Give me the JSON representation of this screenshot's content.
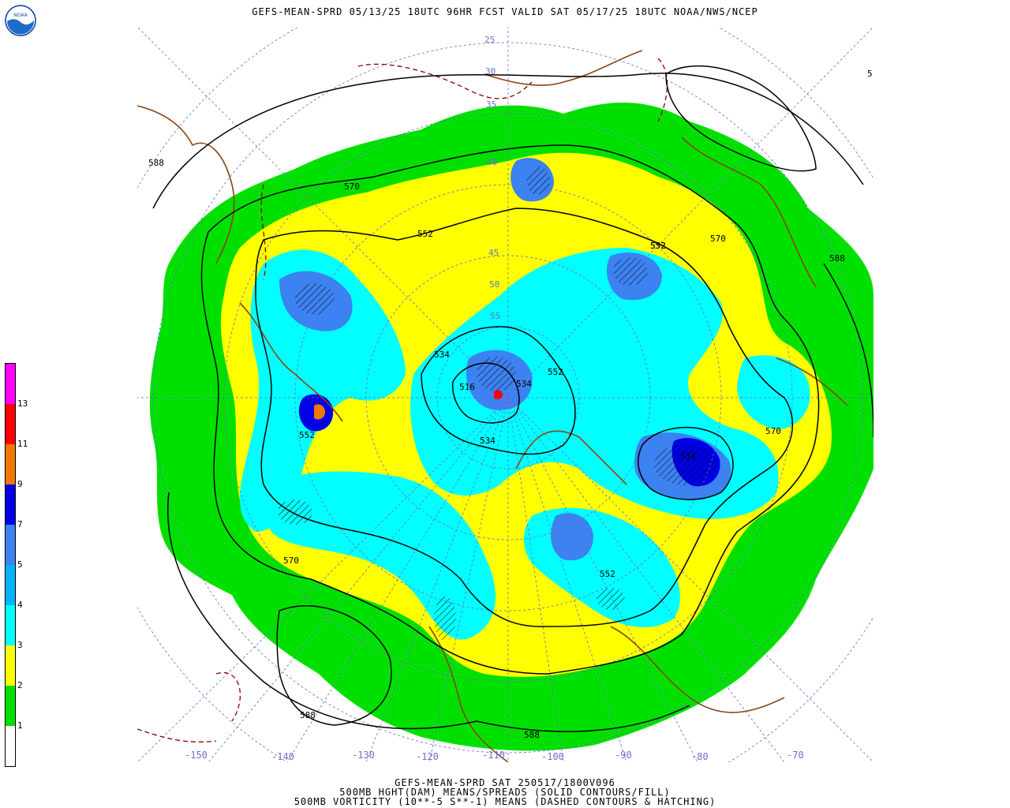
{
  "header": {
    "title": "GEFS-MEAN-SPRD 05/13/25 18UTC 96HR FCST VALID SAT 05/17/25 18UTC NOAA/NWS/NCEP"
  },
  "footer": {
    "line1": "GEFS-MEAN-SPRD SAT 250517/1800V096",
    "line2": "500MB HGHT(DAM) MEANS/SPREADS (SOLID CONTOURS/FILL)",
    "line3": "500MB VORTICITY (10**-5 S**-1) MEANS (DASHED CONTOURS & HATCHING)"
  },
  "logo": {
    "icon": "noaa-logo-icon",
    "text": "NOAA"
  },
  "legend": {
    "labels": [
      "1",
      "2",
      "3",
      "4",
      "5",
      "7",
      "9",
      "11",
      "13"
    ],
    "colors": [
      "#ffffff",
      "#00e000",
      "#ffff00",
      "#00ffff",
      "#00b4ff",
      "#3c82f0",
      "#0000e6",
      "#f07800",
      "#ff0000",
      "#ff00ff"
    ]
  },
  "map": {
    "longitude_labels": [
      "-150",
      "-140",
      "-130",
      "-120",
      "-110",
      "-100",
      "-90",
      "-80",
      "-70"
    ],
    "latitude_labels": [
      "25",
      "30",
      "35",
      "40",
      "45",
      "50",
      "55"
    ],
    "contour_labels": [
      "588",
      "570",
      "552",
      "534",
      "516",
      "534",
      "552",
      "570",
      "552",
      "534",
      "552",
      "570",
      "552",
      "534",
      "552",
      "588",
      "588",
      "588",
      "570",
      "5"
    ],
    "colors": {
      "coast": "#8b4513",
      "vorticity": "#8b0000",
      "contour": "#000000",
      "grid": "#6a6ad0"
    }
  }
}
